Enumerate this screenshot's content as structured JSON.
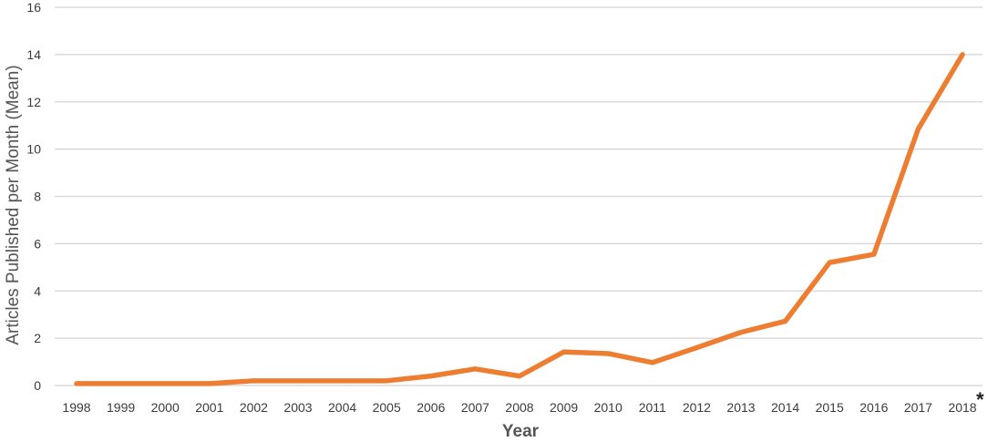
{
  "chart_data": {
    "type": "line",
    "title": "",
    "xlabel": "Year",
    "ylabel": "Articles Published per Month (Mean)",
    "categories": [
      "1998",
      "1999",
      "2000",
      "2001",
      "2002",
      "2003",
      "2004",
      "2005",
      "2006",
      "2007",
      "2008",
      "2009",
      "2010",
      "2011",
      "2012",
      "2013",
      "2014",
      "2015",
      "2016",
      "2017",
      "2018"
    ],
    "series": [
      {
        "values": [
          0.08,
          0.08,
          0.08,
          0.08,
          0.2,
          0.2,
          0.2,
          0.2,
          0.4,
          0.7,
          0.4,
          1.42,
          1.35,
          0.97,
          1.6,
          2.25,
          2.72,
          5.2,
          5.55,
          10.85,
          14.0
        ]
      }
    ],
    "yticks": [
      "0",
      "2",
      "4",
      "6",
      "8",
      "10",
      "12",
      "14",
      "16"
    ],
    "ylim": [
      0,
      16
    ],
    "grid": true,
    "legend": "none",
    "annotation": "*",
    "line_color": "#ed7d31"
  }
}
